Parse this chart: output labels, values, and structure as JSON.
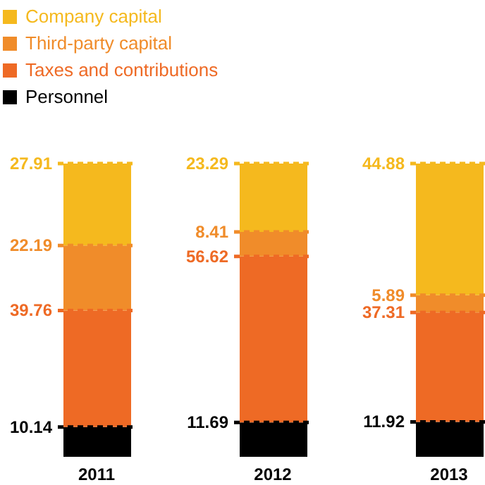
{
  "chart_data": {
    "type": "bar",
    "stacked": true,
    "data_labels": true,
    "legend": "top left",
    "categories": [
      "2011",
      "2012",
      "2013"
    ],
    "series": [
      {
        "name": "Personnel",
        "color": "#000000",
        "values": [
          10.14,
          11.69,
          11.92
        ]
      },
      {
        "name": "Taxes and contributions",
        "color": "#ee6a25",
        "values": [
          39.76,
          56.62,
          37.31
        ]
      },
      {
        "name": "Third-party capital",
        "color": "#f08c2a",
        "values": [
          22.19,
          8.41,
          5.89
        ]
      },
      {
        "name": "Company capital",
        "color": "#f5b91e",
        "values": [
          27.91,
          23.29,
          44.88
        ]
      }
    ]
  }
}
